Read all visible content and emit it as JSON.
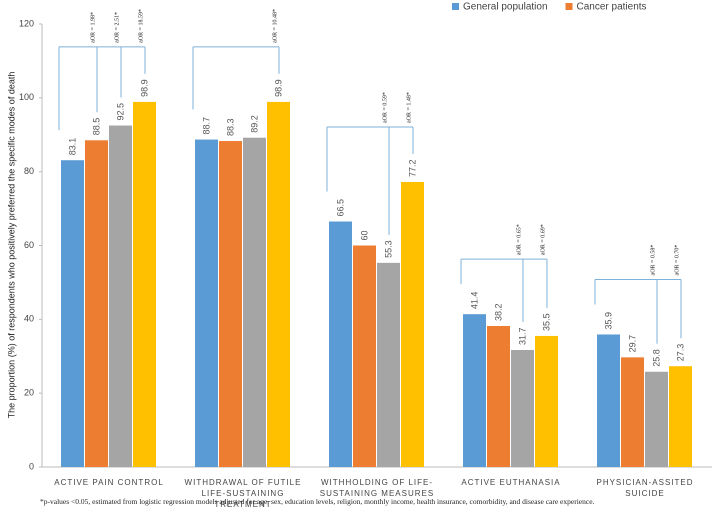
{
  "chart_data": {
    "type": "bar",
    "y_label": "The proportion (%) of respondents who positively preferred the specific modes of death",
    "categories": [
      "ACTIVE PAIN CONTROL",
      "WITHDRAWAL OF FUTILE LIFE-SUSTAINING TREATMENT",
      "WITHHOLDING OF LIFE-SUSTAINING MEASURES",
      "ACTIVE EUTHANASIA",
      "PHYSICIAN-ASSITED SUICIDE"
    ],
    "series": [
      {
        "name": "General population",
        "color": "#5b9bd5",
        "values": [
          83.1,
          88.7,
          66.5,
          41.4,
          35.9
        ]
      },
      {
        "name": "Cancer patients",
        "color": "#ed7d31",
        "values": [
          88.5,
          88.3,
          60,
          38.2,
          29.7
        ]
      },
      {
        "color": "#a5a5a5",
        "values": [
          92.5,
          89.2,
          55.3,
          31.7,
          25.8
        ]
      },
      {
        "color": "#ffc000",
        "values": [
          98.9,
          98.9,
          77.2,
          35.5,
          27.3
        ]
      }
    ],
    "annotations": [
      [
        "aOR = 1.98*",
        "aOR = 2.51*",
        "aOR = 18.59*"
      ],
      [
        "aOR = 10.48*"
      ],
      [
        "aOR = 0.59*",
        "aOR = 1.48*"
      ],
      [
        "aOR = 0.65*",
        "aOR = 0.69*"
      ],
      [
        "aOR = 0.58*",
        "aOR = 0.70*"
      ]
    ],
    "footnote": "*p-values <0.05, estimated from logistic regression models adjusted for age, sex, education levels, religion, monthly income, health insurance, comorbidity, and disease care experience.",
    "ylim": [
      0,
      120
    ],
    "yticks": [
      0,
      20,
      40,
      60,
      80,
      100,
      120
    ],
    "grid": false,
    "legend": "top-right"
  }
}
